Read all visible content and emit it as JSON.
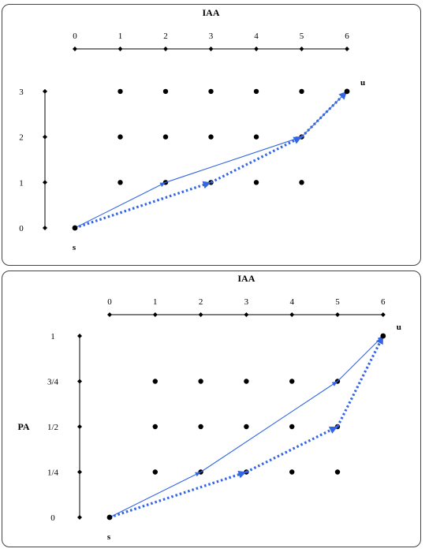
{
  "diagrams": [
    {
      "title": "IAA",
      "x_ticks": [
        "0",
        "1",
        "2",
        "3",
        "4",
        "5",
        "6"
      ],
      "y_ticks": [
        "0",
        "1",
        "2",
        "3"
      ],
      "y_axis_label": "",
      "start_label": "s",
      "end_label": "u",
      "grid_x": [
        1,
        2,
        3,
        4,
        5
      ],
      "grid_y": [
        1,
        2,
        3
      ],
      "start_point": [
        0,
        0
      ],
      "end_point": [
        6,
        3
      ],
      "solid_path": [
        [
          0,
          0
        ],
        [
          2,
          1
        ],
        [
          5,
          2
        ],
        [
          6,
          3
        ]
      ],
      "dotted_path": [
        [
          0,
          0
        ],
        [
          3,
          1
        ],
        [
          5,
          2
        ],
        [
          6,
          3
        ]
      ]
    },
    {
      "title": "IAA",
      "x_ticks": [
        "0",
        "1",
        "2",
        "3",
        "4",
        "5",
        "6"
      ],
      "y_ticks": [
        "0",
        "1/4",
        "1/2",
        "3/4",
        "1"
      ],
      "y_axis_label": "PA",
      "start_label": "s",
      "end_label": "u",
      "grid_x": [
        1,
        2,
        3,
        4,
        5
      ],
      "grid_y": [
        1,
        2,
        3
      ],
      "start_point": [
        0,
        0
      ],
      "end_point": [
        6,
        4
      ],
      "solid_path": [
        [
          0,
          0
        ],
        [
          2,
          1
        ],
        [
          5,
          3
        ],
        [
          6,
          4
        ]
      ],
      "dotted_path": [
        [
          0,
          0
        ],
        [
          3,
          1
        ],
        [
          5,
          2
        ],
        [
          6,
          4
        ]
      ]
    }
  ],
  "colors": {
    "path": "#3366e6",
    "ink": "#000000"
  }
}
